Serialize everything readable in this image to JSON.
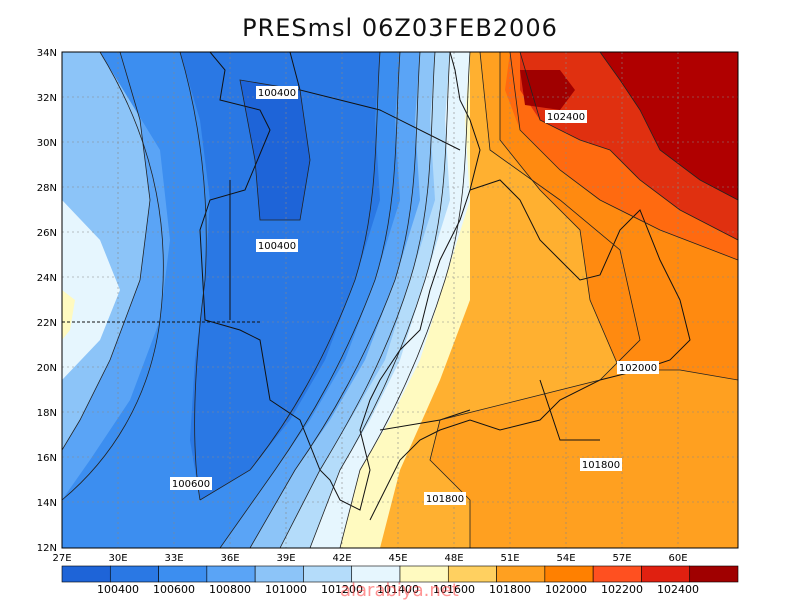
{
  "title": "PRESmsl  06Z03FEB2006",
  "axes": {
    "lon_labels": [
      "27E",
      "30E",
      "33E",
      "36E",
      "39E",
      "42E",
      "45E",
      "48E",
      "51E",
      "54E",
      "57E",
      "60E"
    ],
    "lat_labels": [
      "34N",
      "32N",
      "30N",
      "28N",
      "26N",
      "24N",
      "22N",
      "20N",
      "18N",
      "16N",
      "14N",
      "12N"
    ]
  },
  "contour_labels": [
    {
      "text": "100400",
      "id": "label-100400-north"
    },
    {
      "text": "100400",
      "id": "label-100400-central"
    },
    {
      "text": "100600",
      "id": "label-100600-south"
    },
    {
      "text": "101800",
      "id": "label-101800-east"
    },
    {
      "text": "101800",
      "id": "label-101800-south"
    },
    {
      "text": "102000",
      "id": "label-102000"
    },
    {
      "text": "102400",
      "id": "label-102400"
    }
  ],
  "colorbar": {
    "labels": [
      "100400",
      "100600",
      "100800",
      "101000",
      "101200",
      "101400",
      "101600",
      "101800",
      "102000",
      "102200",
      "102400"
    ],
    "colors": [
      "#1e64d8",
      "#2a78e4",
      "#3c8ef0",
      "#5aa4f6",
      "#8cc4f8",
      "#b4dcfa",
      "#e6f6fe",
      "#fffac0",
      "#ffd060",
      "#ffa020",
      "#ff8000",
      "#ff5020",
      "#e02010",
      "#a00000"
    ]
  },
  "watermark": "alarabiya.net"
}
